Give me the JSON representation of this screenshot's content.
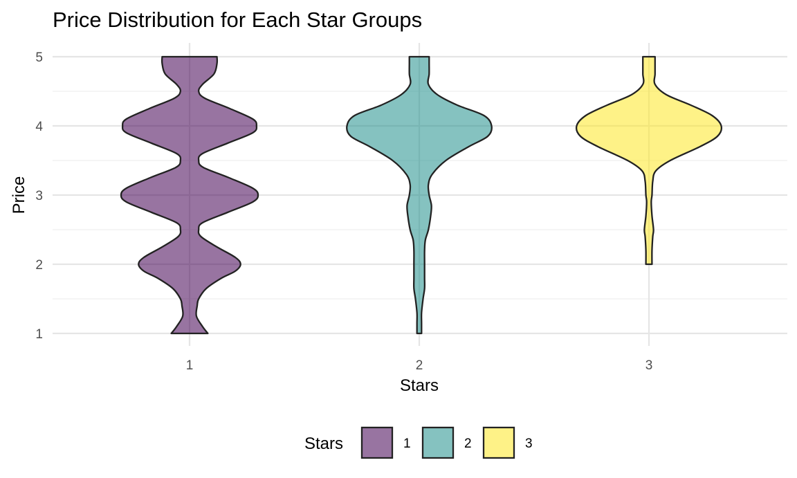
{
  "chart_data": {
    "type": "violin",
    "title": "Price Distribution for Each Star Groups",
    "xlabel": "Stars",
    "ylabel": "Price",
    "categories": [
      "1",
      "2",
      "3"
    ],
    "ylim": [
      1,
      5
    ],
    "yticks": [
      1,
      2,
      3,
      4,
      5
    ],
    "grid": true,
    "legend": {
      "title": "Stars",
      "position": "bottom",
      "entries": [
        "1",
        "2",
        "3"
      ]
    },
    "series": [
      {
        "name": "1",
        "color": "#440154",
        "profile": [
          [
            1.0,
            0.24
          ],
          [
            1.1,
            0.17
          ],
          [
            1.25,
            0.09
          ],
          [
            1.4,
            0.1
          ],
          [
            1.5,
            0.12
          ],
          [
            1.65,
            0.22
          ],
          [
            1.8,
            0.42
          ],
          [
            1.9,
            0.6
          ],
          [
            2.0,
            0.67
          ],
          [
            2.1,
            0.6
          ],
          [
            2.25,
            0.36
          ],
          [
            2.4,
            0.15
          ],
          [
            2.5,
            0.12
          ],
          [
            2.6,
            0.17
          ],
          [
            2.75,
            0.5
          ],
          [
            2.9,
            0.83
          ],
          [
            3.0,
            0.9
          ],
          [
            3.1,
            0.83
          ],
          [
            3.25,
            0.52
          ],
          [
            3.4,
            0.18
          ],
          [
            3.5,
            0.12
          ],
          [
            3.6,
            0.17
          ],
          [
            3.75,
            0.5
          ],
          [
            3.9,
            0.83
          ],
          [
            4.0,
            0.88
          ],
          [
            4.1,
            0.83
          ],
          [
            4.25,
            0.53
          ],
          [
            4.4,
            0.2
          ],
          [
            4.5,
            0.12
          ],
          [
            4.6,
            0.17
          ],
          [
            4.75,
            0.32
          ],
          [
            4.9,
            0.36
          ],
          [
            5.0,
            0.36
          ]
        ]
      },
      {
        "name": "2",
        "color": "#21908C",
        "profile": [
          [
            1.0,
            0.03
          ],
          [
            1.15,
            0.03
          ],
          [
            1.3,
            0.03
          ],
          [
            1.5,
            0.05
          ],
          [
            1.65,
            0.07
          ],
          [
            1.8,
            0.07
          ],
          [
            2.0,
            0.07
          ],
          [
            2.2,
            0.07
          ],
          [
            2.35,
            0.08
          ],
          [
            2.5,
            0.12
          ],
          [
            2.7,
            0.15
          ],
          [
            2.85,
            0.16
          ],
          [
            3.0,
            0.13
          ],
          [
            3.15,
            0.12
          ],
          [
            3.3,
            0.17
          ],
          [
            3.5,
            0.35
          ],
          [
            3.7,
            0.65
          ],
          [
            3.85,
            0.9
          ],
          [
            4.0,
            0.95
          ],
          [
            4.15,
            0.85
          ],
          [
            4.3,
            0.5
          ],
          [
            4.45,
            0.24
          ],
          [
            4.6,
            0.12
          ],
          [
            4.75,
            0.13
          ],
          [
            4.9,
            0.13
          ],
          [
            5.0,
            0.13
          ]
        ]
      },
      {
        "name": "3",
        "color": "#FDE725",
        "profile": [
          [
            2.0,
            0.04
          ],
          [
            2.2,
            0.04
          ],
          [
            2.4,
            0.05
          ],
          [
            2.5,
            0.06
          ],
          [
            2.7,
            0.04
          ],
          [
            2.9,
            0.03
          ],
          [
            3.0,
            0.04
          ],
          [
            3.2,
            0.05
          ],
          [
            3.35,
            0.09
          ],
          [
            3.5,
            0.28
          ],
          [
            3.7,
            0.67
          ],
          [
            3.85,
            0.9
          ],
          [
            4.0,
            0.95
          ],
          [
            4.15,
            0.83
          ],
          [
            4.3,
            0.55
          ],
          [
            4.45,
            0.23
          ],
          [
            4.6,
            0.08
          ],
          [
            4.75,
            0.08
          ],
          [
            4.9,
            0.08
          ],
          [
            5.0,
            0.08
          ]
        ]
      }
    ]
  }
}
